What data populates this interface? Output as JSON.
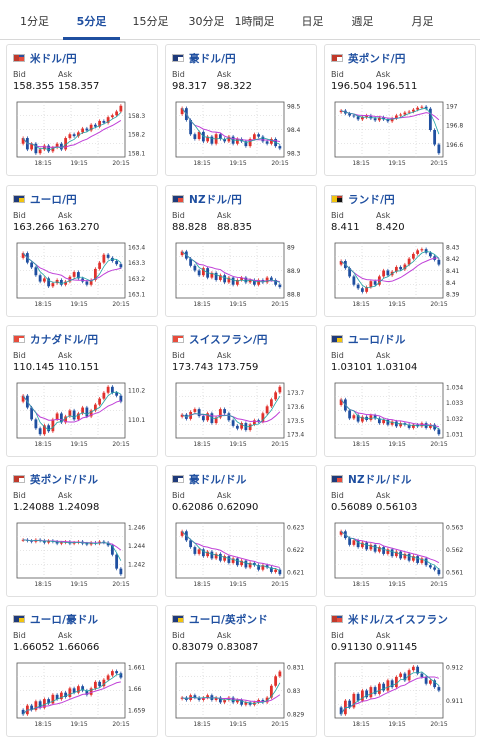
{
  "tabs": [
    "1分足",
    "5分足",
    "15分足",
    "30分足",
    "1時間足",
    "日足",
    "週足",
    "月足"
  ],
  "active_tab": 1,
  "labels": {
    "bid": "Bid",
    "ask": "Ask"
  },
  "colors": {
    "accent": "#1f4fa0",
    "up_candle": "#e0312c",
    "down_candle": "#1f4fa0",
    "ma_line": "#c041d8",
    "ma_line2": "#20a3a3"
  },
  "cards": [
    {
      "pair": "米ドル/円",
      "flag": "us",
      "bid": "158.355",
      "ask": "158.357",
      "chart_data": {
        "type": "candlestick",
        "x_ticks": [
          "18:15",
          "19:15",
          "20:15"
        ],
        "y_ticks": [
          "158.3",
          "158.2",
          "158.1"
        ],
        "closes": [
          158.18,
          158.12,
          158.15,
          158.1,
          158.12,
          158.14,
          158.11,
          158.13,
          158.15,
          158.12,
          158.18,
          158.2,
          158.19,
          158.21,
          158.23,
          158.22,
          158.25,
          158.24,
          158.27,
          158.26,
          158.29,
          158.3,
          158.32,
          158.35
        ]
      }
    },
    {
      "pair": "豪ドル/円",
      "flag": "au",
      "bid": "98.317",
      "ask": "98.322",
      "chart_data": {
        "type": "candlestick",
        "x_ticks": [
          "18:15",
          "19:15",
          "20:15"
        ],
        "y_ticks": [
          "98.5",
          "98.4",
          "98.3"
        ],
        "closes": [
          98.49,
          98.44,
          98.38,
          98.36,
          98.39,
          98.35,
          98.37,
          98.34,
          98.38,
          98.36,
          98.35,
          98.37,
          98.34,
          98.36,
          98.35,
          98.33,
          98.36,
          98.38,
          98.37,
          98.35,
          98.34,
          98.36,
          98.33,
          98.32
        ]
      }
    },
    {
      "pair": "英ポンド/円",
      "flag": "gb",
      "bid": "196.504",
      "ask": "196.511",
      "chart_data": {
        "type": "candlestick",
        "x_ticks": [
          "18:15",
          "19:15",
          "20:15"
        ],
        "y_ticks": [
          "197",
          "196.8",
          "196.6"
        ],
        "closes": [
          196.95,
          196.92,
          196.9,
          196.89,
          196.86,
          196.88,
          196.9,
          196.87,
          196.85,
          196.88,
          196.86,
          196.84,
          196.87,
          196.9,
          196.91,
          196.93,
          196.94,
          196.96,
          196.98,
          196.99,
          196.97,
          196.75,
          196.6,
          196.51
        ]
      }
    },
    {
      "pair": "ユーロ/円",
      "flag": "eu",
      "bid": "163.266",
      "ask": "163.270",
      "chart_data": {
        "type": "candlestick",
        "x_ticks": [
          "18:15",
          "19:15",
          "20:15"
        ],
        "y_ticks": [
          "163.4",
          "163.3",
          "163.2",
          "163.1"
        ],
        "closes": [
          163.36,
          163.3,
          163.27,
          163.22,
          163.18,
          163.2,
          163.15,
          163.17,
          163.19,
          163.16,
          163.18,
          163.21,
          163.24,
          163.2,
          163.18,
          163.16,
          163.19,
          163.26,
          163.3,
          163.35,
          163.33,
          163.31,
          163.29,
          163.27
        ]
      }
    },
    {
      "pair": "NZドル/円",
      "flag": "nz",
      "bid": "88.828",
      "ask": "88.835",
      "chart_data": {
        "type": "candlestick",
        "x_ticks": [
          "18:15",
          "19:15",
          "20:15"
        ],
        "y_ticks": [
          "89",
          "88.9",
          "88.8"
        ],
        "closes": [
          88.98,
          88.95,
          88.92,
          88.9,
          88.88,
          88.91,
          88.87,
          88.89,
          88.86,
          88.88,
          88.85,
          88.87,
          88.84,
          88.86,
          88.87,
          88.85,
          88.86,
          88.84,
          88.86,
          88.85,
          88.87,
          88.86,
          88.84,
          88.83
        ]
      }
    },
    {
      "pair": "ランド/円",
      "flag": "za",
      "bid": "8.411",
      "ask": "8.420",
      "chart_data": {
        "type": "candlestick",
        "x_ticks": [
          "18:15",
          "19:15",
          "20:15"
        ],
        "y_ticks": [
          "8.43",
          "8.42",
          "8.41",
          "8.4",
          "8.39"
        ],
        "closes": [
          8.418,
          8.412,
          8.405,
          8.398,
          8.395,
          8.392,
          8.396,
          8.401,
          8.398,
          8.405,
          8.41,
          8.406,
          8.409,
          8.413,
          8.411,
          8.415,
          8.42,
          8.424,
          8.427,
          8.428,
          8.425,
          8.422,
          8.419,
          8.415
        ]
      }
    },
    {
      "pair": "カナダドル/円",
      "flag": "ca",
      "bid": "110.145",
      "ask": "110.151",
      "chart_data": {
        "type": "candlestick",
        "x_ticks": [
          "18:15",
          "19:15",
          "20:15"
        ],
        "y_ticks": [
          "110.2",
          "110.1"
        ],
        "closes": [
          110.18,
          110.14,
          110.1,
          110.07,
          110.05,
          110.08,
          110.06,
          110.1,
          110.12,
          110.09,
          110.11,
          110.13,
          110.1,
          110.12,
          110.14,
          110.11,
          110.13,
          110.15,
          110.17,
          110.19,
          110.21,
          110.19,
          110.18,
          110.16
        ]
      }
    },
    {
      "pair": "スイスフラン/円",
      "flag": "ch",
      "bid": "173.743",
      "ask": "173.759",
      "chart_data": {
        "type": "candlestick",
        "x_ticks": [
          "18:15",
          "19:15",
          "20:15"
        ],
        "y_ticks": [
          "173.7",
          "173.6",
          "173.5",
          "173.4"
        ],
        "closes": [
          173.54,
          173.51,
          173.56,
          173.58,
          173.53,
          173.5,
          173.55,
          173.48,
          173.52,
          173.58,
          173.55,
          173.5,
          173.46,
          173.44,
          173.48,
          173.43,
          173.47,
          173.5,
          173.49,
          173.55,
          173.6,
          173.65,
          173.7,
          173.74
        ]
      }
    },
    {
      "pair": "ユーロ/ドル",
      "flag": "eu",
      "bid": "1.03101",
      "ask": "1.03104",
      "chart_data": {
        "type": "candlestick",
        "x_ticks": [
          "18:15",
          "19:15",
          "20:15"
        ],
        "y_ticks": [
          "1.034",
          "1.033",
          "1.032",
          "1.031"
        ],
        "closes": [
          1.0332,
          1.0325,
          1.032,
          1.0322,
          1.0318,
          1.0321,
          1.0319,
          1.0322,
          1.032,
          1.0317,
          1.0319,
          1.0316,
          1.0318,
          1.0315,
          1.0317,
          1.0316,
          1.0314,
          1.0316,
          1.0315,
          1.0317,
          1.0314,
          1.0316,
          1.0313,
          1.031
        ]
      }
    },
    {
      "pair": "英ポンド/ドル",
      "flag": "gb",
      "bid": "1.24088",
      "ask": "1.24098",
      "chart_data": {
        "type": "candlestick",
        "x_ticks": [
          "18:15",
          "19:15",
          "20:15"
        ],
        "y_ticks": [
          "1.246",
          "1.244",
          "1.242"
        ],
        "closes": [
          1.2446,
          1.2445,
          1.2444,
          1.2446,
          1.2445,
          1.2443,
          1.2445,
          1.2444,
          1.2442,
          1.2443,
          1.2444,
          1.2442,
          1.2443,
          1.2444,
          1.2442,
          1.2441,
          1.2443,
          1.2442,
          1.2444,
          1.2443,
          1.244,
          1.243,
          1.2415,
          1.2409
        ]
      }
    },
    {
      "pair": "豪ドル/ドル",
      "flag": "au",
      "bid": "0.62086",
      "ask": "0.62090",
      "chart_data": {
        "type": "candlestick",
        "x_ticks": [
          "18:15",
          "19:15",
          "20:15"
        ],
        "y_ticks": [
          "0.623",
          "0.622",
          "0.621"
        ],
        "closes": [
          0.6228,
          0.6224,
          0.6221,
          0.6218,
          0.622,
          0.6217,
          0.6219,
          0.6216,
          0.6218,
          0.6215,
          0.6217,
          0.6214,
          0.6216,
          0.6213,
          0.6215,
          0.6212,
          0.6214,
          0.6213,
          0.6211,
          0.6213,
          0.6212,
          0.621,
          0.6211,
          0.6209
        ]
      }
    },
    {
      "pair": "NZドル/ドル",
      "flag": "nz",
      "bid": "0.56089",
      "ask": "0.56103",
      "chart_data": {
        "type": "candlestick",
        "x_ticks": [
          "18:15",
          "19:15",
          "20:15"
        ],
        "y_ticks": [
          "0.563",
          "0.562",
          "0.561"
        ],
        "closes": [
          0.5628,
          0.5625,
          0.5622,
          0.5624,
          0.5621,
          0.5623,
          0.562,
          0.5622,
          0.5619,
          0.5621,
          0.5618,
          0.562,
          0.5617,
          0.5619,
          0.5616,
          0.5618,
          0.5615,
          0.5617,
          0.5614,
          0.5616,
          0.5613,
          0.5612,
          0.5611,
          0.5609
        ]
      }
    },
    {
      "pair": "ユーロ/豪ドル",
      "flag": "eu",
      "bid": "1.66052",
      "ask": "1.66066",
      "chart_data": {
        "type": "candlestick",
        "x_ticks": [
          "18:15",
          "19:15",
          "20:15"
        ],
        "y_ticks": [
          "1.661",
          "1.66",
          "1.659"
        ],
        "closes": [
          1.6588,
          1.6592,
          1.659,
          1.6594,
          1.6591,
          1.6595,
          1.6593,
          1.6597,
          1.6595,
          1.6598,
          1.6596,
          1.66,
          1.6598,
          1.6601,
          1.6599,
          1.6597,
          1.66,
          1.6603,
          1.6601,
          1.6604,
          1.6606,
          1.6608,
          1.6607,
          1.6605
        ]
      }
    },
    {
      "pair": "ユーロ/英ポンド",
      "flag": "eu",
      "bid": "0.83079",
      "ask": "0.83087",
      "chart_data": {
        "type": "candlestick",
        "x_ticks": [
          "18:15",
          "19:15",
          "20:15"
        ],
        "y_ticks": [
          "0.831",
          "0.83",
          "0.829"
        ],
        "closes": [
          0.8297,
          0.8296,
          0.8298,
          0.8297,
          0.8296,
          0.8297,
          0.8298,
          0.8296,
          0.8297,
          0.8295,
          0.8296,
          0.8297,
          0.8295,
          0.8296,
          0.8294,
          0.8295,
          0.8294,
          0.8295,
          0.8296,
          0.8295,
          0.8297,
          0.8302,
          0.8306,
          0.8308
        ]
      }
    },
    {
      "pair": "米ドル/スイスフラン",
      "flag": "us",
      "bid": "0.91130",
      "ask": "0.91145",
      "chart_data": {
        "type": "candlestick",
        "x_ticks": [
          "18:15",
          "19:15",
          "20:15"
        ],
        "y_ticks": [
          "0.912",
          "0.911"
        ],
        "closes": [
          0.9106,
          0.911,
          0.9108,
          0.9112,
          0.911,
          0.9113,
          0.9111,
          0.9114,
          0.9112,
          0.9115,
          0.9113,
          0.9116,
          0.9114,
          0.9117,
          0.9118,
          0.9116,
          0.9119,
          0.912,
          0.9118,
          0.9117,
          0.9115,
          0.9116,
          0.9114,
          0.9113
        ]
      }
    }
  ]
}
